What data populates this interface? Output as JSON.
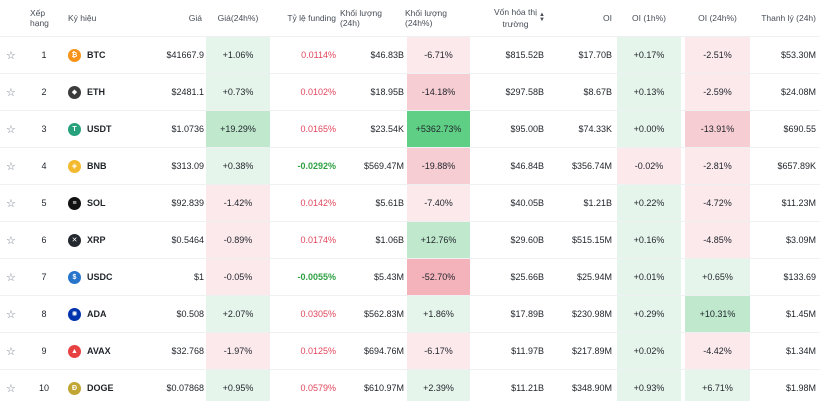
{
  "header": {
    "star": "",
    "rank": "Xếp hạng",
    "coin": "Ký hiệu",
    "price": "Giá",
    "p24": "Giá(24h%)",
    "fund": "Tỷ lệ funding",
    "vol": "Khối lượng (24h)",
    "vol24": "Khối lượng (24h%)",
    "mcap_line1": "Vốn hóa thị",
    "mcap_line2": "trường",
    "oi": "OI",
    "oi1": "OI (1h%)",
    "oi24": "OI (24h%)",
    "liq": "Thanh lý (24h)"
  },
  "colors": {
    "green_light": "#e6f5ec",
    "green_mid": "#bfe8cd",
    "green_strong": "#5fcf85",
    "red_light": "#fbe9ec",
    "red_mid": "#f6cdd3",
    "red_strong": "#f4b3bb"
  },
  "rows": [
    {
      "rank": "1",
      "symbol": "BTC",
      "icon": "btc-icon",
      "icon_color": "#f7931a",
      "icon_glyph": "₿",
      "price": "$41667.9",
      "p24": "+1.06%",
      "fund": "0.0114%",
      "vol": "$46.83B",
      "vol24": "-6.71%",
      "mcap": "$815.52B",
      "oi": "$17.70B",
      "oi1": "+0.17%",
      "oi24": "-2.51%",
      "liq": "$53.30M"
    },
    {
      "rank": "2",
      "symbol": "ETH",
      "icon": "eth-icon",
      "icon_color": "#3c3c3d",
      "icon_glyph": "◆",
      "price": "$2481.1",
      "p24": "+0.73%",
      "fund": "0.0102%",
      "vol": "$18.95B",
      "vol24": "-14.18%",
      "mcap": "$297.58B",
      "oi": "$8.67B",
      "oi1": "+0.13%",
      "oi24": "-2.59%",
      "liq": "$24.08M"
    },
    {
      "rank": "3",
      "symbol": "USDT",
      "icon": "usdt-icon",
      "icon_color": "#26a17b",
      "icon_glyph": "T",
      "price": "$1.0736",
      "p24": "+19.29%",
      "fund": "0.0165%",
      "vol": "$23.54K",
      "vol24": "+5362.73%",
      "mcap": "$95.00B",
      "oi": "$74.33K",
      "oi1": "+0.00%",
      "oi24": "-13.91%",
      "liq": "$690.55"
    },
    {
      "rank": "4",
      "symbol": "BNB",
      "icon": "bnb-icon",
      "icon_color": "#f3ba2f",
      "icon_glyph": "◈",
      "price": "$313.09",
      "p24": "+0.38%",
      "fund": "-0.0292%",
      "vol": "$569.47M",
      "vol24": "-19.88%",
      "mcap": "$46.84B",
      "oi": "$356.74M",
      "oi1": "-0.02%",
      "oi24": "-2.81%",
      "liq": "$657.89K"
    },
    {
      "rank": "5",
      "symbol": "SOL",
      "icon": "sol-icon",
      "icon_color": "#111111",
      "icon_glyph": "≡",
      "price": "$92.839",
      "p24": "-1.42%",
      "fund": "0.0142%",
      "vol": "$5.61B",
      "vol24": "-7.40%",
      "mcap": "$40.05B",
      "oi": "$1.21B",
      "oi1": "+0.22%",
      "oi24": "-4.72%",
      "liq": "$11.23M"
    },
    {
      "rank": "6",
      "symbol": "XRP",
      "icon": "xrp-icon",
      "icon_color": "#23292f",
      "icon_glyph": "✕",
      "price": "$0.5464",
      "p24": "-0.89%",
      "fund": "0.0174%",
      "vol": "$1.06B",
      "vol24": "+12.76%",
      "mcap": "$29.60B",
      "oi": "$515.15M",
      "oi1": "+0.16%",
      "oi24": "-4.85%",
      "liq": "$3.09M"
    },
    {
      "rank": "7",
      "symbol": "USDC",
      "icon": "usdc-icon",
      "icon_color": "#2775ca",
      "icon_glyph": "$",
      "price": "$1",
      "p24": "-0.05%",
      "fund": "-0.0055%",
      "vol": "$5.43M",
      "vol24": "-52.70%",
      "mcap": "$25.66B",
      "oi": "$25.94M",
      "oi1": "+0.01%",
      "oi24": "+0.65%",
      "liq": "$133.69"
    },
    {
      "rank": "8",
      "symbol": "ADA",
      "icon": "ada-icon",
      "icon_color": "#0033ad",
      "icon_glyph": "✺",
      "price": "$0.508",
      "p24": "+2.07%",
      "fund": "0.0305%",
      "vol": "$562.83M",
      "vol24": "+1.86%",
      "mcap": "$17.89B",
      "oi": "$230.98M",
      "oi1": "+0.29%",
      "oi24": "+10.31%",
      "liq": "$1.45M"
    },
    {
      "rank": "9",
      "symbol": "AVAX",
      "icon": "avax-icon",
      "icon_color": "#e84142",
      "icon_glyph": "▲",
      "price": "$32.768",
      "p24": "-1.97%",
      "fund": "0.0125%",
      "vol": "$694.76M",
      "vol24": "-6.17%",
      "mcap": "$11.97B",
      "oi": "$217.89M",
      "oi1": "+0.02%",
      "oi24": "-4.42%",
      "liq": "$1.34M"
    },
    {
      "rank": "10",
      "symbol": "DOGE",
      "icon": "doge-icon",
      "icon_color": "#c2a633",
      "icon_glyph": "Ð",
      "price": "$0.07868",
      "p24": "+0.95%",
      "fund": "0.0579%",
      "vol": "$610.97M",
      "vol24": "+2.39%",
      "mcap": "$11.21B",
      "oi": "$348.90M",
      "oi1": "+0.93%",
      "oi24": "+6.71%",
      "liq": "$1.98M"
    }
  ]
}
